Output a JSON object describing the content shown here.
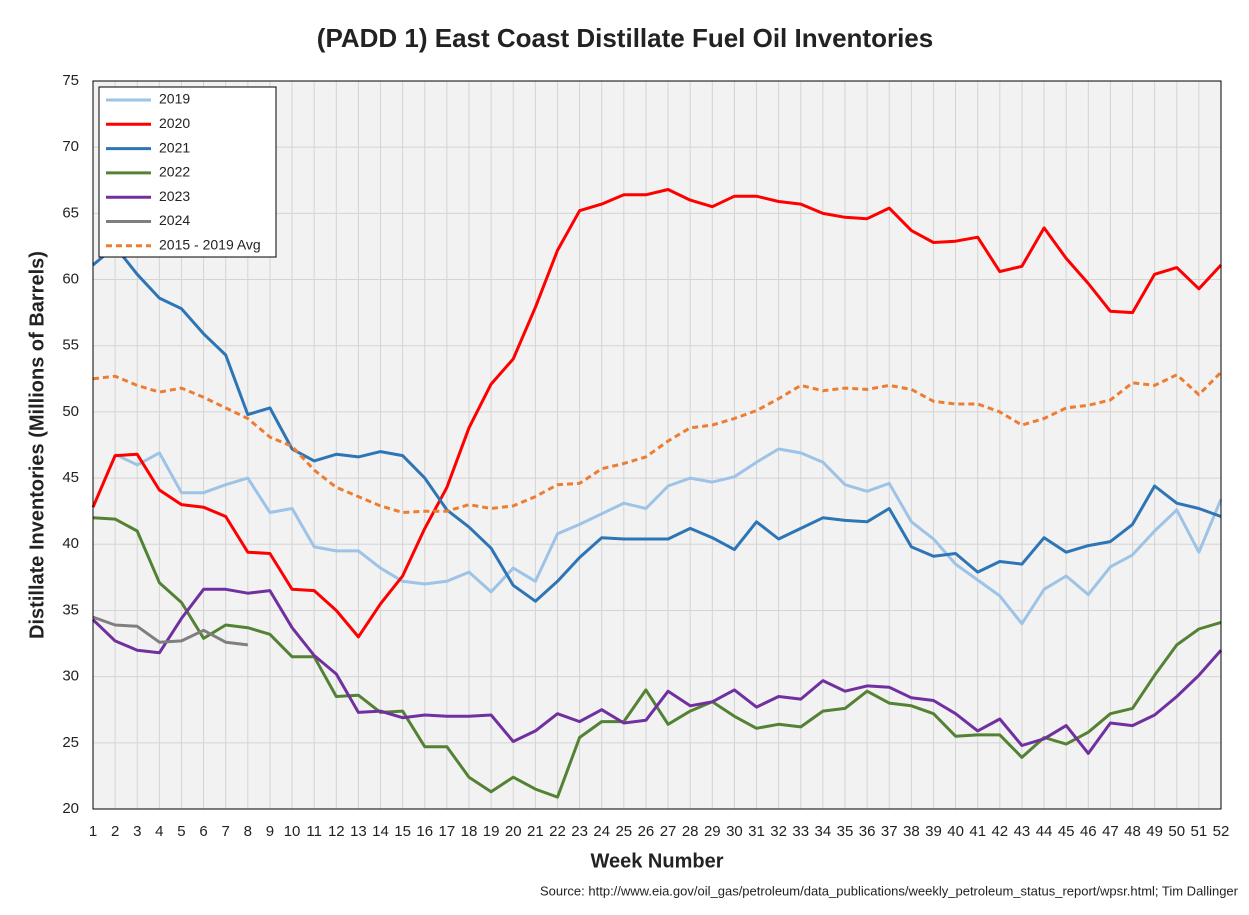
{
  "chart_data": {
    "type": "line",
    "title": "(PADD 1) East Coast Distillate Fuel Oil Inventories",
    "x_label": "Week Number",
    "y_label": "Distillate Inventories (Millions of Barrels)",
    "source": "Source: http://www.eia.gov/oil_gas/petroleum/data_publications/weekly_petroleum_status_report/wpsr.html; Tim Dallinger",
    "x": [
      1,
      2,
      3,
      4,
      5,
      6,
      7,
      8,
      9,
      10,
      11,
      12,
      13,
      14,
      15,
      16,
      17,
      18,
      19,
      20,
      21,
      22,
      23,
      24,
      25,
      26,
      27,
      28,
      29,
      30,
      31,
      32,
      33,
      34,
      35,
      36,
      37,
      38,
      39,
      40,
      41,
      42,
      43,
      44,
      45,
      46,
      47,
      48,
      49,
      50,
      51,
      52
    ],
    "xlim": [
      1,
      52
    ],
    "xticks": [
      1,
      2,
      3,
      4,
      5,
      6,
      7,
      8,
      9,
      10,
      11,
      12,
      13,
      14,
      15,
      16,
      17,
      18,
      19,
      20,
      21,
      22,
      23,
      24,
      25,
      26,
      27,
      28,
      29,
      30,
      31,
      32,
      33,
      34,
      35,
      36,
      37,
      38,
      39,
      40,
      41,
      42,
      43,
      44,
      45,
      46,
      47,
      48,
      49,
      50,
      51,
      52
    ],
    "ylim": [
      20,
      75
    ],
    "yticks": [
      20,
      25,
      30,
      35,
      40,
      45,
      50,
      55,
      60,
      65,
      70,
      75
    ],
    "grid": true,
    "legend": "top-left",
    "series": [
      {
        "name": "2019",
        "color": "#9dc3e6",
        "values": [
          null,
          46.8,
          46.0,
          46.9,
          43.9,
          43.9,
          44.5,
          45.0,
          42.4,
          42.7,
          39.8,
          39.5,
          39.5,
          38.2,
          37.2,
          37.0,
          37.2,
          37.9,
          36.4,
          38.2,
          37.2,
          40.8,
          41.5,
          42.3,
          43.1,
          42.7,
          44.4,
          45.0,
          44.7,
          45.1,
          46.2,
          47.2,
          46.9,
          46.2,
          44.5,
          44.0,
          44.6,
          41.7,
          40.4,
          38.5,
          37.3,
          36.1,
          34.0,
          36.6,
          37.6,
          36.2,
          38.3,
          39.2,
          41.0,
          42.6,
          39.4,
          43.4
        ]
      },
      {
        "name": "2020",
        "color": "#ff0000",
        "values": [
          42.8,
          46.7,
          46.8,
          44.1,
          43.0,
          42.8,
          42.1,
          39.4,
          39.3,
          36.6,
          36.5,
          35.0,
          33.0,
          35.5,
          37.6,
          41.2,
          44.3,
          48.8,
          52.1,
          54.0,
          57.9,
          62.2,
          65.2,
          65.7,
          66.4,
          66.4,
          66.8,
          66.0,
          65.5,
          66.3,
          66.3,
          65.9,
          65.7,
          65.0,
          64.7,
          64.6,
          65.4,
          63.7,
          62.8,
          62.9,
          63.2,
          60.6,
          61.0,
          63.9,
          61.6,
          59.7,
          57.6,
          57.5,
          60.4,
          60.9,
          59.3,
          61.1
        ]
      },
      {
        "name": "2021",
        "color": "#2e75b6",
        "values": [
          61.1,
          62.5,
          60.4,
          58.6,
          57.8,
          55.9,
          54.3,
          49.8,
          50.3,
          47.2,
          46.3,
          46.8,
          46.6,
          47.0,
          46.7,
          45.0,
          42.6,
          41.3,
          39.7,
          36.9,
          35.7,
          37.2,
          39.0,
          40.5,
          40.4,
          40.4,
          40.4,
          41.2,
          40.5,
          39.6,
          41.7,
          40.4,
          41.2,
          42.0,
          41.8,
          41.7,
          42.7,
          39.8,
          39.1,
          39.3,
          37.9,
          38.7,
          38.5,
          40.5,
          39.4,
          39.9,
          40.2,
          41.5,
          44.4,
          43.1,
          42.7,
          42.1
        ]
      },
      {
        "name": "2022",
        "color": "#548235",
        "values": [
          42.0,
          41.9,
          41.0,
          37.1,
          35.6,
          32.9,
          33.9,
          33.7,
          33.2,
          31.5,
          31.5,
          28.5,
          28.6,
          27.3,
          27.4,
          24.7,
          24.7,
          22.4,
          21.3,
          22.4,
          21.5,
          20.9,
          25.4,
          26.6,
          26.6,
          29.0,
          26.4,
          27.4,
          28.1,
          27.0,
          26.1,
          26.4,
          26.2,
          27.4,
          27.6,
          28.9,
          28.0,
          27.8,
          27.2,
          25.5,
          25.6,
          25.6,
          23.9,
          25.4,
          24.9,
          25.8,
          27.2,
          27.6,
          30.1,
          32.4,
          33.6,
          34.1
        ]
      },
      {
        "name": "2023",
        "color": "#7030a0",
        "values": [
          34.3,
          32.7,
          32.0,
          31.8,
          34.4,
          36.6,
          36.6,
          36.3,
          36.5,
          33.7,
          31.6,
          30.2,
          27.3,
          27.4,
          26.9,
          27.1,
          27.0,
          27.0,
          27.1,
          25.1,
          25.9,
          27.2,
          26.6,
          27.5,
          26.5,
          26.7,
          28.9,
          27.8,
          28.1,
          29.0,
          27.7,
          28.5,
          28.3,
          29.7,
          28.9,
          29.3,
          29.2,
          28.4,
          28.2,
          27.2,
          25.9,
          26.8,
          24.8,
          25.3,
          26.3,
          24.2,
          26.5,
          26.3,
          27.1,
          28.5,
          30.1,
          32.0
        ]
      },
      {
        "name": "2024",
        "color": "#7f7f7f",
        "values": [
          34.5,
          33.9,
          33.8,
          32.6,
          32.7,
          33.5,
          32.6,
          32.4,
          null,
          null,
          null,
          null,
          null,
          null,
          null,
          null,
          null,
          null,
          null,
          null,
          null,
          null,
          null,
          null,
          null,
          null,
          null,
          null,
          null,
          null,
          null,
          null,
          null,
          null,
          null,
          null,
          null,
          null,
          null,
          null,
          null,
          null,
          null,
          null,
          null,
          null,
          null,
          null,
          null,
          null,
          null,
          null
        ]
      },
      {
        "name": "2015 - 2019 Avg",
        "color": "#ed7d31",
        "dashed": true,
        "values": [
          52.5,
          52.7,
          52.0,
          51.5,
          51.8,
          51.1,
          50.3,
          49.5,
          48.1,
          47.4,
          45.6,
          44.3,
          43.6,
          42.9,
          42.4,
          42.5,
          42.5,
          43.0,
          42.7,
          42.9,
          43.6,
          44.5,
          44.6,
          45.7,
          46.1,
          46.6,
          47.8,
          48.8,
          49.0,
          49.5,
          50.1,
          51.0,
          52.0,
          51.6,
          51.8,
          51.7,
          52.0,
          51.7,
          50.8,
          50.6,
          50.6,
          50.0,
          49.0,
          49.5,
          50.3,
          50.5,
          50.9,
          52.2,
          52.0,
          52.8,
          51.3,
          53.0
        ]
      }
    ]
  }
}
